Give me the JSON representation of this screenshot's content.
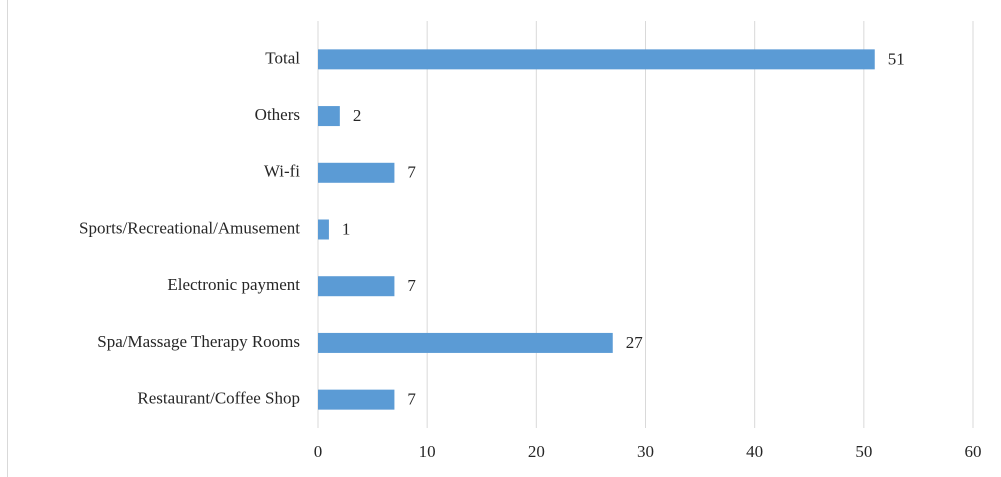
{
  "chart_data": {
    "type": "hbar",
    "categories": [
      "Total",
      "Others",
      "Wi-fi",
      "Sports/Recreational/Amusement",
      "Electronic payment",
      "Spa/Massage Therapy Rooms",
      "Restaurant/Coffee Shop"
    ],
    "values": [
      51,
      2,
      7,
      1,
      7,
      27,
      7
    ],
    "color": "#5b9bd5",
    "xlim": [
      0,
      60
    ],
    "xticks": [
      0,
      10,
      20,
      30,
      40,
      50,
      60
    ],
    "grid": true
  }
}
